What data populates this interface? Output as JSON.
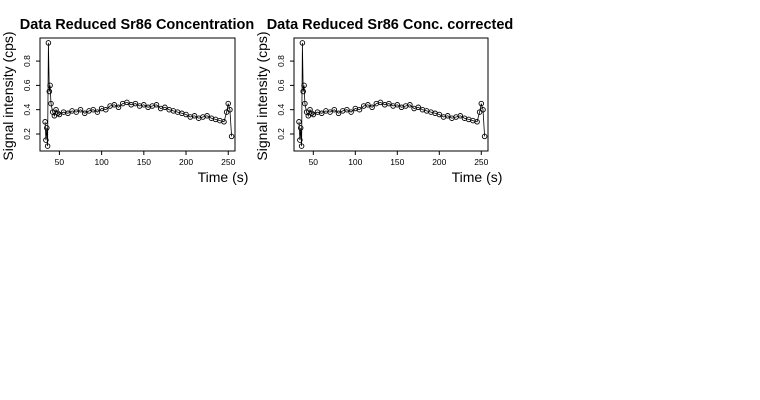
{
  "chart_data": [
    {
      "type": "scatter",
      "title": "Data Reduced Sr86 Concentration",
      "xlabel": "Time (s)",
      "ylabel": "Signal intensity (cps)",
      "xlim": [
        27,
        258
      ],
      "ylim": [
        0.06,
        0.99
      ],
      "xticks": [
        50,
        100,
        150,
        200,
        250
      ],
      "yticks": [
        0.2,
        0.4,
        0.6,
        0.8
      ],
      "grid": false,
      "legend": "none",
      "series": [
        {
          "x": [
            33,
            34,
            35,
            36,
            37,
            38,
            39,
            40,
            42,
            44,
            46,
            48,
            50,
            55,
            60,
            65,
            70,
            75,
            80,
            85,
            90,
            95,
            100,
            105,
            110,
            115,
            120,
            125,
            130,
            135,
            140,
            145,
            150,
            155,
            160,
            165,
            170,
            175,
            180,
            185,
            190,
            195,
            200,
            205,
            210,
            215,
            220,
            225,
            230,
            235,
            240,
            245,
            248,
            250,
            252,
            254
          ],
          "y": [
            0.3,
            0.15,
            0.25,
            0.1,
            0.95,
            0.55,
            0.6,
            0.45,
            0.38,
            0.35,
            0.4,
            0.37,
            0.36,
            0.38,
            0.37,
            0.39,
            0.38,
            0.4,
            0.37,
            0.39,
            0.4,
            0.38,
            0.41,
            0.4,
            0.43,
            0.44,
            0.42,
            0.45,
            0.46,
            0.44,
            0.45,
            0.43,
            0.44,
            0.42,
            0.43,
            0.44,
            0.41,
            0.42,
            0.4,
            0.39,
            0.38,
            0.37,
            0.36,
            0.34,
            0.35,
            0.33,
            0.34,
            0.35,
            0.33,
            0.32,
            0.31,
            0.3,
            0.38,
            0.45,
            0.4,
            0.18
          ]
        }
      ]
    },
    {
      "type": "scatter",
      "title": "Data Reduced Sr86 Conc. corrected",
      "xlabel": "Time (s)",
      "ylabel": "Signal intensity (cps)",
      "xlim": [
        27,
        258
      ],
      "ylim": [
        0.06,
        0.99
      ],
      "xticks": [
        50,
        100,
        150,
        200,
        250
      ],
      "yticks": [
        0.2,
        0.4,
        0.6,
        0.8
      ],
      "grid": false,
      "legend": "none",
      "series": [
        {
          "x": [
            33,
            34,
            35,
            36,
            37,
            38,
            39,
            40,
            42,
            44,
            46,
            48,
            50,
            55,
            60,
            65,
            70,
            75,
            80,
            85,
            90,
            95,
            100,
            105,
            110,
            115,
            120,
            125,
            130,
            135,
            140,
            145,
            150,
            155,
            160,
            165,
            170,
            175,
            180,
            185,
            190,
            195,
            200,
            205,
            210,
            215,
            220,
            225,
            230,
            235,
            240,
            245,
            248,
            250,
            252,
            254
          ],
          "y": [
            0.3,
            0.15,
            0.25,
            0.1,
            0.95,
            0.55,
            0.6,
            0.45,
            0.38,
            0.35,
            0.4,
            0.37,
            0.36,
            0.38,
            0.37,
            0.39,
            0.38,
            0.4,
            0.37,
            0.39,
            0.4,
            0.38,
            0.41,
            0.4,
            0.43,
            0.44,
            0.42,
            0.45,
            0.46,
            0.44,
            0.45,
            0.43,
            0.44,
            0.42,
            0.43,
            0.44,
            0.41,
            0.42,
            0.4,
            0.39,
            0.38,
            0.37,
            0.36,
            0.34,
            0.35,
            0.33,
            0.34,
            0.35,
            0.33,
            0.32,
            0.31,
            0.3,
            0.38,
            0.45,
            0.4,
            0.18
          ]
        }
      ]
    }
  ]
}
